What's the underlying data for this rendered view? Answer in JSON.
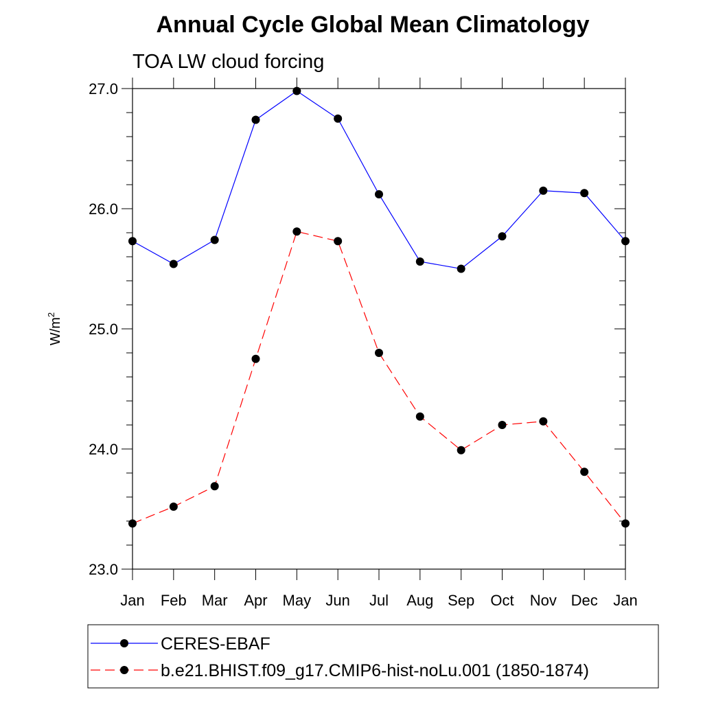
{
  "chart_data": {
    "type": "line",
    "title": "Annual Cycle Global Mean Climatology",
    "subtitle": "TOA LW cloud forcing",
    "xlabel": "",
    "ylabel": "W/m",
    "ylabel_superscript": "2",
    "categories": [
      "Jan",
      "Feb",
      "Mar",
      "Apr",
      "May",
      "Jun",
      "Jul",
      "Aug",
      "Sep",
      "Oct",
      "Nov",
      "Dec",
      "Jan"
    ],
    "ylim": [
      23.0,
      27.0
    ],
    "yticks": [
      "23.0",
      "24.0",
      "25.0",
      "26.0",
      "27.0"
    ],
    "grid": false,
    "legend_position": "bottom",
    "series": [
      {
        "name": "CERES-EBAF",
        "color": "#0000ff",
        "dash": "solid",
        "values": [
          25.73,
          25.54,
          25.74,
          26.74,
          26.98,
          26.75,
          26.12,
          25.56,
          25.5,
          25.77,
          26.15,
          26.13,
          25.73
        ]
      },
      {
        "name": "b.e21.BHIST.f09_g17.CMIP6-hist-noLu.001 (1850-1874)",
        "color": "#ff0000",
        "dash": "dashed",
        "values": [
          23.38,
          23.52,
          23.69,
          24.75,
          25.81,
          25.73,
          24.8,
          24.27,
          23.99,
          24.2,
          24.23,
          23.81,
          23.38
        ]
      }
    ]
  }
}
